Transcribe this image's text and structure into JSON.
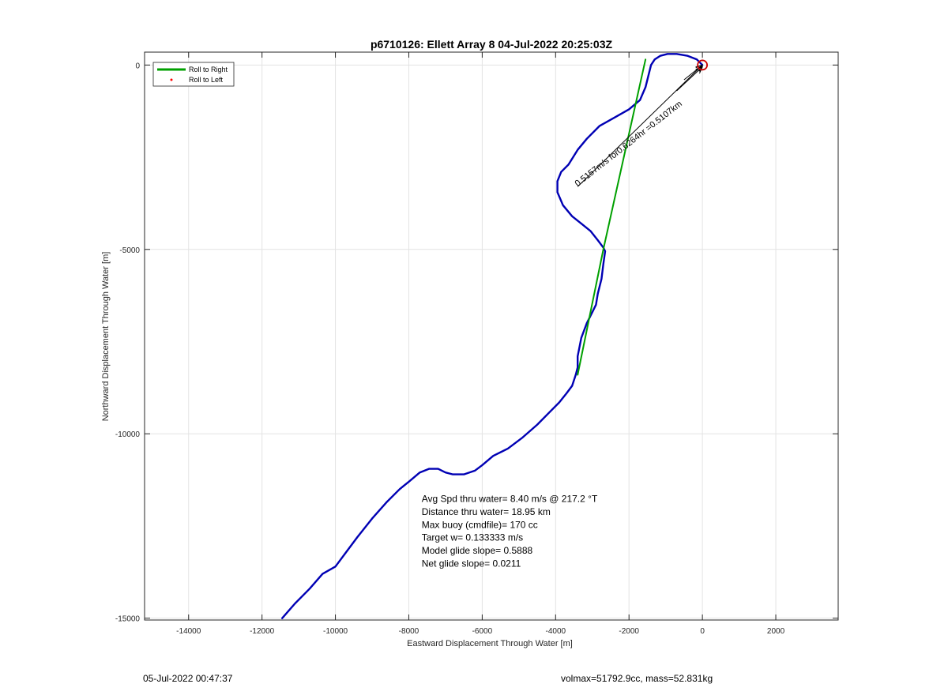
{
  "chart_data": {
    "type": "line",
    "title": "p6710126: Ellett Array 8 04-Jul-2022 20:25:03Z",
    "xlabel": "Eastward Displacement Through Water [m]",
    "ylabel": "Northward Displacement Through Water [m]",
    "xlim": [
      -15200,
      3700
    ],
    "ylim": [
      -15050,
      350
    ],
    "xticks": [
      -14000,
      -12000,
      -10000,
      -8000,
      -6000,
      -4000,
      -2000,
      0,
      2000
    ],
    "yticks": [
      0,
      -5000,
      -10000,
      -15000
    ],
    "xtick_labels": [
      "-14000",
      "-12000",
      "-10000",
      "-8000",
      "-6000",
      "-4000",
      "-2000",
      "0",
      "2000"
    ],
    "ytick_labels": [
      "0",
      "-5000",
      "-10000",
      "-15000"
    ],
    "grid": true,
    "legend_position": "top-left",
    "legend": [
      {
        "label": "Roll to Right",
        "color": "#00a000",
        "marker": "line"
      },
      {
        "label": "Roll to Left",
        "color": "#ff0000",
        "marker": "dot"
      }
    ],
    "series": [
      {
        "name": "",
        "color": "#0000b4",
        "x": [
          -11450,
          -11100,
          -10700,
          -10350,
          -10000,
          -9700,
          -9400,
          -9000,
          -8600,
          -8250,
          -8000,
          -7700,
          -7450,
          -7200,
          -7000,
          -6800,
          -6500,
          -6200,
          -6000,
          -5700,
          -5300,
          -4900,
          -4500,
          -4150,
          -3900,
          -3700,
          -3550,
          -3450,
          -3400,
          -3400,
          -3300,
          -3150,
          -3000,
          -2900,
          -2850,
          -2750,
          -2700,
          -2650,
          -2700,
          -2850,
          -3050,
          -3300,
          -3550,
          -3800,
          -3950,
          -3950,
          -3850,
          -3650,
          -3400,
          -3150,
          -2800,
          -2350,
          -2000,
          -1700,
          -1550,
          -1400,
          -1300,
          -1150,
          -950,
          -700,
          -400,
          -150,
          0
        ],
        "y": [
          -15000,
          -14600,
          -14200,
          -13800,
          -13600,
          -13200,
          -12800,
          -12300,
          -11850,
          -11500,
          -11300,
          -11050,
          -10950,
          -10950,
          -11050,
          -11100,
          -11100,
          -11000,
          -10850,
          -10600,
          -10400,
          -10100,
          -9750,
          -9400,
          -9150,
          -8900,
          -8700,
          -8400,
          -8200,
          -7900,
          -7400,
          -7000,
          -6700,
          -6500,
          -6200,
          -5800,
          -5400,
          -5050,
          -4950,
          -4750,
          -4500,
          -4300,
          -4100,
          -3800,
          -3450,
          -3150,
          -2900,
          -2700,
          -2300,
          -2000,
          -1650,
          -1400,
          -1200,
          -950,
          -600,
          0,
          150,
          250,
          300,
          300,
          250,
          150,
          0
        ]
      },
      {
        "name": "",
        "color": "#00a000",
        "x": [
          -3400,
          -2700,
          -1550
        ],
        "y": [
          -8400,
          -5000,
          150
        ]
      }
    ],
    "markers": [
      {
        "name": "end-point",
        "x": 0,
        "y": 0,
        "color": "#cc0000",
        "shape": "circle"
      }
    ],
    "annotations": [
      {
        "text": "Avg Spd thru water=  8.40 m/s @ 217.2 °T",
        "x": -7650,
        "y": -11850
      },
      {
        "text": "Distance thru water= 18.95 km",
        "x": -7650,
        "y": -12200
      },
      {
        "text": "Max buoy (cmdfile)= 170 cc",
        "x": -7650,
        "y": -12550
      },
      {
        "text": "Target w= 0.133333 m/s",
        "x": -7650,
        "y": -12900
      },
      {
        "text": "Model glide slope= 0.5888",
        "x": -7650,
        "y": -13250
      },
      {
        "text": "Net glide slope= 0.0211",
        "x": -7650,
        "y": -13600
      }
    ],
    "rotated_label": {
      "text": "0.5157m/s for0.6264hr =0.5107km",
      "x": -3400,
      "y": -3300,
      "angle": -38
    },
    "arrows": [
      {
        "x1": -3400,
        "y1": -3300,
        "x2": 0,
        "y2": 0
      },
      {
        "x1": -700,
        "y1": -700,
        "x2": 0,
        "y2": -50
      },
      {
        "x1": -500,
        "y1": -400,
        "x2": 0,
        "y2": 0
      }
    ]
  },
  "footer": {
    "timestamp": "05-Jul-2022 00:47:37",
    "stats": "volmax=51792.9cc, mass=52.831kg"
  }
}
